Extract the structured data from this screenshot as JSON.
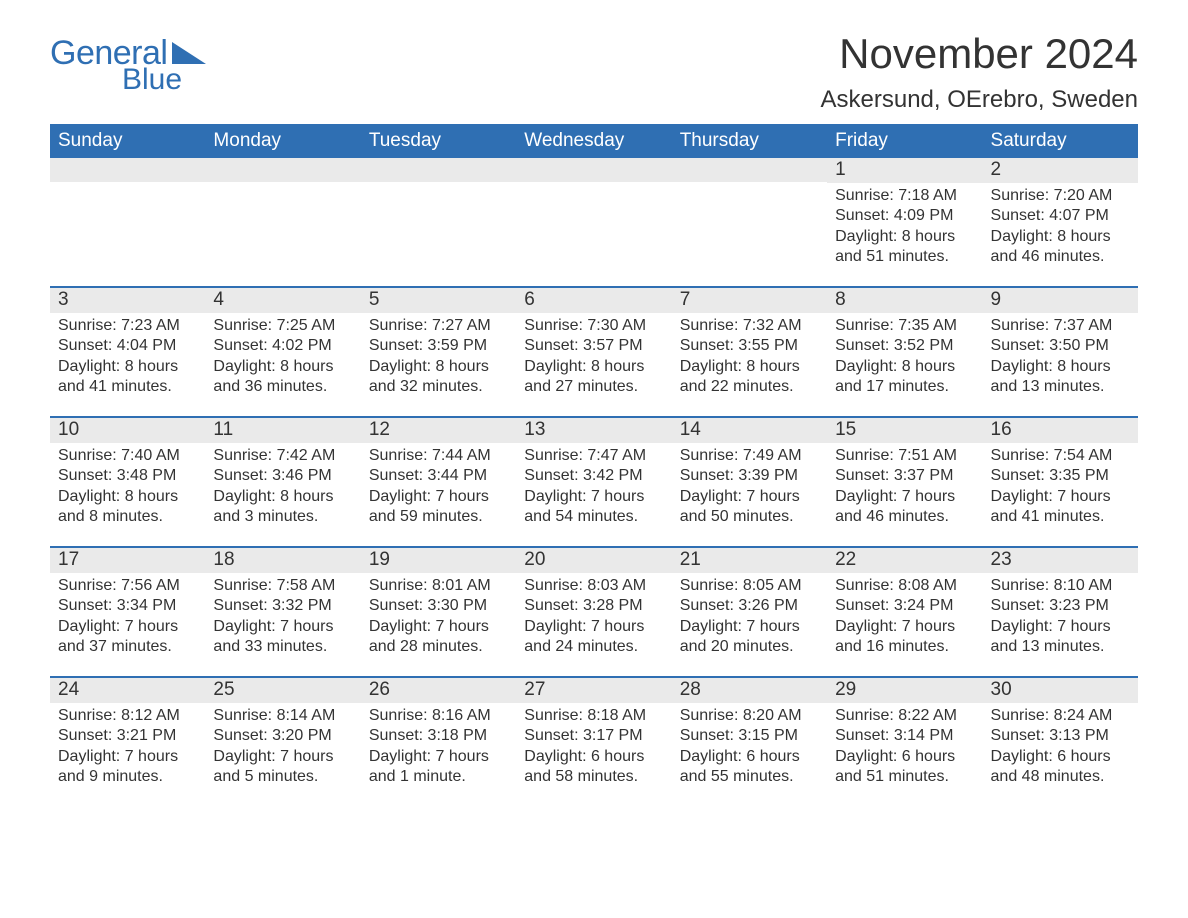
{
  "brand": {
    "general": "General",
    "blue": "Blue",
    "color": "#2f6fb3"
  },
  "title": {
    "month": "November 2024",
    "location": "Askersund, OErebro, Sweden"
  },
  "colors": {
    "header_bg": "#2f6fb3",
    "header_text": "#ffffff",
    "daynum_bg": "#eaeaea",
    "row_border": "#2f6fb3",
    "page_bg": "#ffffff",
    "text": "#333333"
  },
  "weekdays": [
    "Sunday",
    "Monday",
    "Tuesday",
    "Wednesday",
    "Thursday",
    "Friday",
    "Saturday"
  ],
  "labels": {
    "sunrise": "Sunrise:",
    "sunset": "Sunset:",
    "daylight": "Daylight:"
  },
  "weeks": [
    [
      null,
      null,
      null,
      null,
      null,
      {
        "day": 1,
        "sunrise": "7:18 AM",
        "sunset": "4:09 PM",
        "daylight": "8 hours and 51 minutes."
      },
      {
        "day": 2,
        "sunrise": "7:20 AM",
        "sunset": "4:07 PM",
        "daylight": "8 hours and 46 minutes."
      }
    ],
    [
      {
        "day": 3,
        "sunrise": "7:23 AM",
        "sunset": "4:04 PM",
        "daylight": "8 hours and 41 minutes."
      },
      {
        "day": 4,
        "sunrise": "7:25 AM",
        "sunset": "4:02 PM",
        "daylight": "8 hours and 36 minutes."
      },
      {
        "day": 5,
        "sunrise": "7:27 AM",
        "sunset": "3:59 PM",
        "daylight": "8 hours and 32 minutes."
      },
      {
        "day": 6,
        "sunrise": "7:30 AM",
        "sunset": "3:57 PM",
        "daylight": "8 hours and 27 minutes."
      },
      {
        "day": 7,
        "sunrise": "7:32 AM",
        "sunset": "3:55 PM",
        "daylight": "8 hours and 22 minutes."
      },
      {
        "day": 8,
        "sunrise": "7:35 AM",
        "sunset": "3:52 PM",
        "daylight": "8 hours and 17 minutes."
      },
      {
        "day": 9,
        "sunrise": "7:37 AM",
        "sunset": "3:50 PM",
        "daylight": "8 hours and 13 minutes."
      }
    ],
    [
      {
        "day": 10,
        "sunrise": "7:40 AM",
        "sunset": "3:48 PM",
        "daylight": "8 hours and 8 minutes."
      },
      {
        "day": 11,
        "sunrise": "7:42 AM",
        "sunset": "3:46 PM",
        "daylight": "8 hours and 3 minutes."
      },
      {
        "day": 12,
        "sunrise": "7:44 AM",
        "sunset": "3:44 PM",
        "daylight": "7 hours and 59 minutes."
      },
      {
        "day": 13,
        "sunrise": "7:47 AM",
        "sunset": "3:42 PM",
        "daylight": "7 hours and 54 minutes."
      },
      {
        "day": 14,
        "sunrise": "7:49 AM",
        "sunset": "3:39 PM",
        "daylight": "7 hours and 50 minutes."
      },
      {
        "day": 15,
        "sunrise": "7:51 AM",
        "sunset": "3:37 PM",
        "daylight": "7 hours and 46 minutes."
      },
      {
        "day": 16,
        "sunrise": "7:54 AM",
        "sunset": "3:35 PM",
        "daylight": "7 hours and 41 minutes."
      }
    ],
    [
      {
        "day": 17,
        "sunrise": "7:56 AM",
        "sunset": "3:34 PM",
        "daylight": "7 hours and 37 minutes."
      },
      {
        "day": 18,
        "sunrise": "7:58 AM",
        "sunset": "3:32 PM",
        "daylight": "7 hours and 33 minutes."
      },
      {
        "day": 19,
        "sunrise": "8:01 AM",
        "sunset": "3:30 PM",
        "daylight": "7 hours and 28 minutes."
      },
      {
        "day": 20,
        "sunrise": "8:03 AM",
        "sunset": "3:28 PM",
        "daylight": "7 hours and 24 minutes."
      },
      {
        "day": 21,
        "sunrise": "8:05 AM",
        "sunset": "3:26 PM",
        "daylight": "7 hours and 20 minutes."
      },
      {
        "day": 22,
        "sunrise": "8:08 AM",
        "sunset": "3:24 PM",
        "daylight": "7 hours and 16 minutes."
      },
      {
        "day": 23,
        "sunrise": "8:10 AM",
        "sunset": "3:23 PM",
        "daylight": "7 hours and 13 minutes."
      }
    ],
    [
      {
        "day": 24,
        "sunrise": "8:12 AM",
        "sunset": "3:21 PM",
        "daylight": "7 hours and 9 minutes."
      },
      {
        "day": 25,
        "sunrise": "8:14 AM",
        "sunset": "3:20 PM",
        "daylight": "7 hours and 5 minutes."
      },
      {
        "day": 26,
        "sunrise": "8:16 AM",
        "sunset": "3:18 PM",
        "daylight": "7 hours and 1 minute."
      },
      {
        "day": 27,
        "sunrise": "8:18 AM",
        "sunset": "3:17 PM",
        "daylight": "6 hours and 58 minutes."
      },
      {
        "day": 28,
        "sunrise": "8:20 AM",
        "sunset": "3:15 PM",
        "daylight": "6 hours and 55 minutes."
      },
      {
        "day": 29,
        "sunrise": "8:22 AM",
        "sunset": "3:14 PM",
        "daylight": "6 hours and 51 minutes."
      },
      {
        "day": 30,
        "sunrise": "8:24 AM",
        "sunset": "3:13 PM",
        "daylight": "6 hours and 48 minutes."
      }
    ]
  ]
}
